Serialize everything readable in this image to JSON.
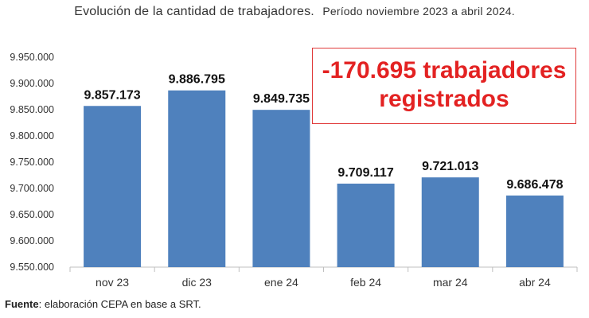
{
  "header": {
    "title": "Evolución de la cantidad de trabajadores.",
    "subtitle": "Período noviembre 2023 a abril 2024."
  },
  "callout": {
    "line1": "-170.695 trabajadores",
    "line2": "registrados",
    "color": "#e32222"
  },
  "source": {
    "label": "Fuente",
    "text": ": elaboración CEPA en base a SRT."
  },
  "chart_data": {
    "type": "bar",
    "categories": [
      "nov 23",
      "dic 23",
      "ene 24",
      "feb 24",
      "mar 24",
      "abr 24"
    ],
    "values": [
      9857173,
      9886795,
      9849735,
      9709117,
      9721013,
      9686478
    ],
    "value_labels": [
      "9.857.173",
      "9.886.795",
      "9.849.735",
      "9.709.117",
      "9.721.013",
      "9.686.478"
    ],
    "ylim": [
      9550000,
      9950000
    ],
    "yticks": [
      9550000,
      9600000,
      9650000,
      9700000,
      9750000,
      9800000,
      9850000,
      9900000,
      9950000
    ],
    "ytick_labels": [
      "9.550.000",
      "9.600.000",
      "9.650.000",
      "9.700.000",
      "9.750.000",
      "9.800.000",
      "9.850.000",
      "9.900.000",
      "9.950.000"
    ],
    "grid": false,
    "bar_color": "#4f81bd",
    "xlabel": "",
    "ylabel": ""
  }
}
